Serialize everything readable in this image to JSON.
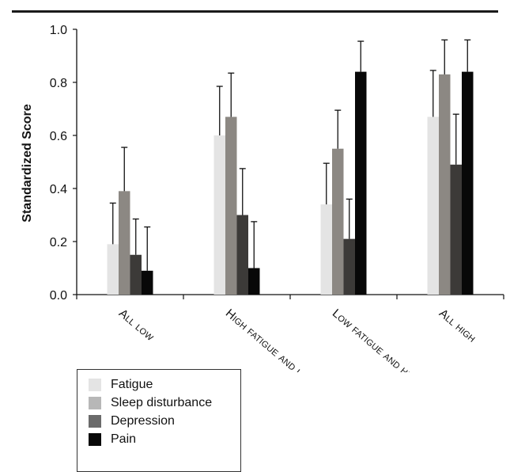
{
  "chart_data": {
    "type": "bar",
    "title": "",
    "xlabel": "",
    "ylabel": "Standardized Score",
    "ylim": [
      0,
      1.0
    ],
    "yticks": [
      "0.0",
      "0.2",
      "0.4",
      "0.6",
      "0.8",
      "1.0"
    ],
    "categories": [
      "All low",
      "High fatigue and low pain",
      "Low fatigue and high pain",
      "All high"
    ],
    "series": [
      {
        "name": "Fatigue",
        "color": "#e4e4e4",
        "values": [
          0.19,
          0.6,
          0.34,
          0.67
        ],
        "err": [
          0.155,
          0.185,
          0.155,
          0.175
        ]
      },
      {
        "name": "Sleep disturbance",
        "color": "#8c8883",
        "values": [
          0.39,
          0.67,
          0.55,
          0.83
        ],
        "err": [
          0.165,
          0.165,
          0.145,
          0.13
        ]
      },
      {
        "name": "Depression",
        "color": "#3c3a38",
        "values": [
          0.15,
          0.3,
          0.21,
          0.49
        ],
        "err": [
          0.135,
          0.175,
          0.15,
          0.19
        ]
      },
      {
        "name": "Pain",
        "color": "#080808",
        "values": [
          0.09,
          0.1,
          0.84,
          0.84
        ],
        "err": [
          0.165,
          0.175,
          0.115,
          0.12
        ]
      }
    ],
    "legend": {
      "position": "bottom-left",
      "items": [
        {
          "label": "Fatigue",
          "color": "#e4e4e4"
        },
        {
          "label": "Sleep disturbance",
          "color": "#b7b7b7"
        },
        {
          "label": "Depression",
          "color": "#6a6a6a"
        },
        {
          "label": "Pain",
          "color": "#080808"
        }
      ]
    },
    "grid": false
  }
}
